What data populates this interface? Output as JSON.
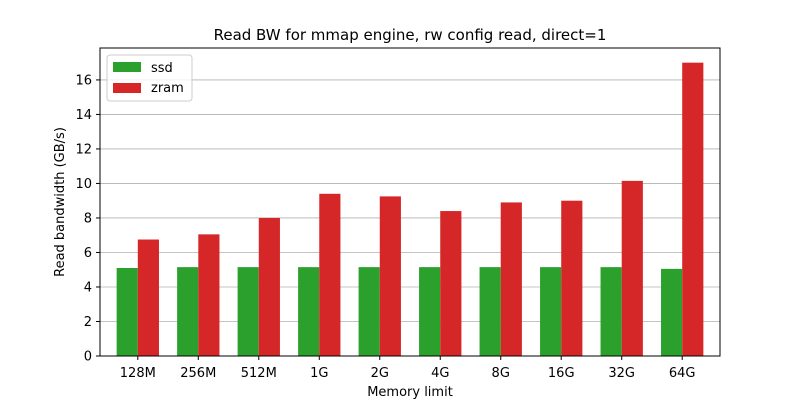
{
  "chart_data": {
    "type": "bar",
    "title": "Read BW for mmap engine, rw config read, direct=1",
    "xlabel": "Memory limit",
    "ylabel": "Read bandwidth (GB/s)",
    "categories": [
      "128M",
      "256M",
      "512M",
      "1G",
      "2G",
      "4G",
      "8G",
      "16G",
      "32G",
      "64G"
    ],
    "series": [
      {
        "name": "ssd",
        "color": "#2ca02c",
        "values": [
          5.1,
          5.15,
          5.15,
          5.15,
          5.15,
          5.15,
          5.15,
          5.15,
          5.15,
          5.05
        ]
      },
      {
        "name": "zram",
        "color": "#d62728",
        "values": [
          6.75,
          7.05,
          8.0,
          9.4,
          9.25,
          8.4,
          8.9,
          9.0,
          10.15,
          17.0
        ]
      }
    ],
    "ylim": [
      0,
      17.85
    ],
    "yticks": [
      0,
      2,
      4,
      6,
      8,
      10,
      12,
      14,
      16
    ],
    "grid": "y",
    "legend": "top-left"
  }
}
